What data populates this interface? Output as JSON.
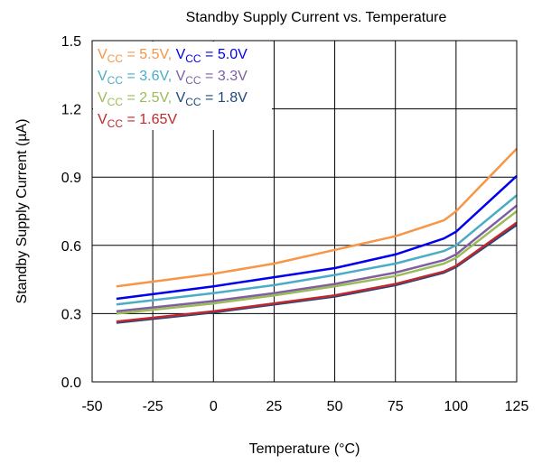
{
  "chart_data": {
    "type": "line",
    "title": "Standby Supply Current vs. Temperature",
    "xlabel": "Temperature (°C)",
    "ylabel": "Standby Supply Current (µA)",
    "xlim": [
      -50,
      125
    ],
    "ylim": [
      0,
      1.5
    ],
    "xticks": [
      -50,
      -25,
      0,
      25,
      50,
      75,
      100,
      125
    ],
    "yticks": [
      0.0,
      0.3,
      0.6,
      0.9,
      1.2,
      1.5
    ],
    "xtick_labels": [
      "-50",
      "-25",
      "0",
      "25",
      "50",
      "75",
      "100",
      "125"
    ],
    "ytick_labels": [
      "0.0",
      "0.3",
      "0.6",
      "0.9",
      "1.2",
      "1.5"
    ],
    "grid": true,
    "legend_position": "top-left",
    "series": [
      {
        "name": "VCC = 5.5V",
        "label_main": "V",
        "label_sub": "CC",
        "label_rest": " = 5.5V",
        "color": "#f79646",
        "points": [
          [
            -40,
            0.42
          ],
          [
            0,
            0.475
          ],
          [
            25,
            0.52
          ],
          [
            50,
            0.58
          ],
          [
            75,
            0.64
          ],
          [
            95,
            0.71
          ],
          [
            100,
            0.75
          ],
          [
            125,
            1.025
          ]
        ]
      },
      {
        "name": "VCC = 5.0V",
        "label_main": "V",
        "label_sub": "CC",
        "label_rest": " = 5.0V",
        "color": "#0000ee",
        "points": [
          [
            -40,
            0.365
          ],
          [
            0,
            0.42
          ],
          [
            25,
            0.46
          ],
          [
            50,
            0.5
          ],
          [
            75,
            0.56
          ],
          [
            95,
            0.63
          ],
          [
            100,
            0.66
          ],
          [
            125,
            0.905
          ]
        ]
      },
      {
        "name": "VCC = 3.6V",
        "label_main": "V",
        "label_sub": "CC",
        "label_rest": " = 3.6V",
        "color": "#4aacc6",
        "points": [
          [
            -40,
            0.34
          ],
          [
            0,
            0.39
          ],
          [
            25,
            0.425
          ],
          [
            50,
            0.47
          ],
          [
            75,
            0.52
          ],
          [
            95,
            0.575
          ],
          [
            100,
            0.6
          ],
          [
            125,
            0.82
          ]
        ]
      },
      {
        "name": "VCC = 3.3V",
        "label_main": "V",
        "label_sub": "CC",
        "label_rest": " = 3.3V",
        "color": "#7f5fa0",
        "points": [
          [
            -40,
            0.31
          ],
          [
            0,
            0.355
          ],
          [
            25,
            0.39
          ],
          [
            50,
            0.43
          ],
          [
            75,
            0.48
          ],
          [
            95,
            0.535
          ],
          [
            100,
            0.56
          ],
          [
            125,
            0.775
          ]
        ]
      },
      {
        "name": "VCC = 2.5V",
        "label_main": "V",
        "label_sub": "CC",
        "label_rest": " = 2.5V",
        "color": "#9bbb59",
        "points": [
          [
            -40,
            0.3
          ],
          [
            0,
            0.345
          ],
          [
            25,
            0.38
          ],
          [
            50,
            0.42
          ],
          [
            75,
            0.465
          ],
          [
            95,
            0.52
          ],
          [
            100,
            0.545
          ],
          [
            125,
            0.75
          ]
        ]
      },
      {
        "name": "VCC = 1.8V",
        "label_main": "V",
        "label_sub": "CC",
        "label_rest": " = 1.8V",
        "color": "#1f497d",
        "points": [
          [
            -40,
            0.26
          ],
          [
            0,
            0.305
          ],
          [
            25,
            0.34
          ],
          [
            50,
            0.375
          ],
          [
            75,
            0.425
          ],
          [
            95,
            0.48
          ],
          [
            100,
            0.505
          ],
          [
            125,
            0.69
          ]
        ]
      },
      {
        "name": "VCC = 1.65V",
        "label_main": "V",
        "label_sub": "CC",
        "label_rest": " = 1.65V",
        "color": "#c0282d",
        "points": [
          [
            -40,
            0.265
          ],
          [
            0,
            0.31
          ],
          [
            25,
            0.345
          ],
          [
            50,
            0.38
          ],
          [
            75,
            0.43
          ],
          [
            95,
            0.485
          ],
          [
            100,
            0.51
          ],
          [
            125,
            0.7
          ]
        ]
      }
    ]
  }
}
